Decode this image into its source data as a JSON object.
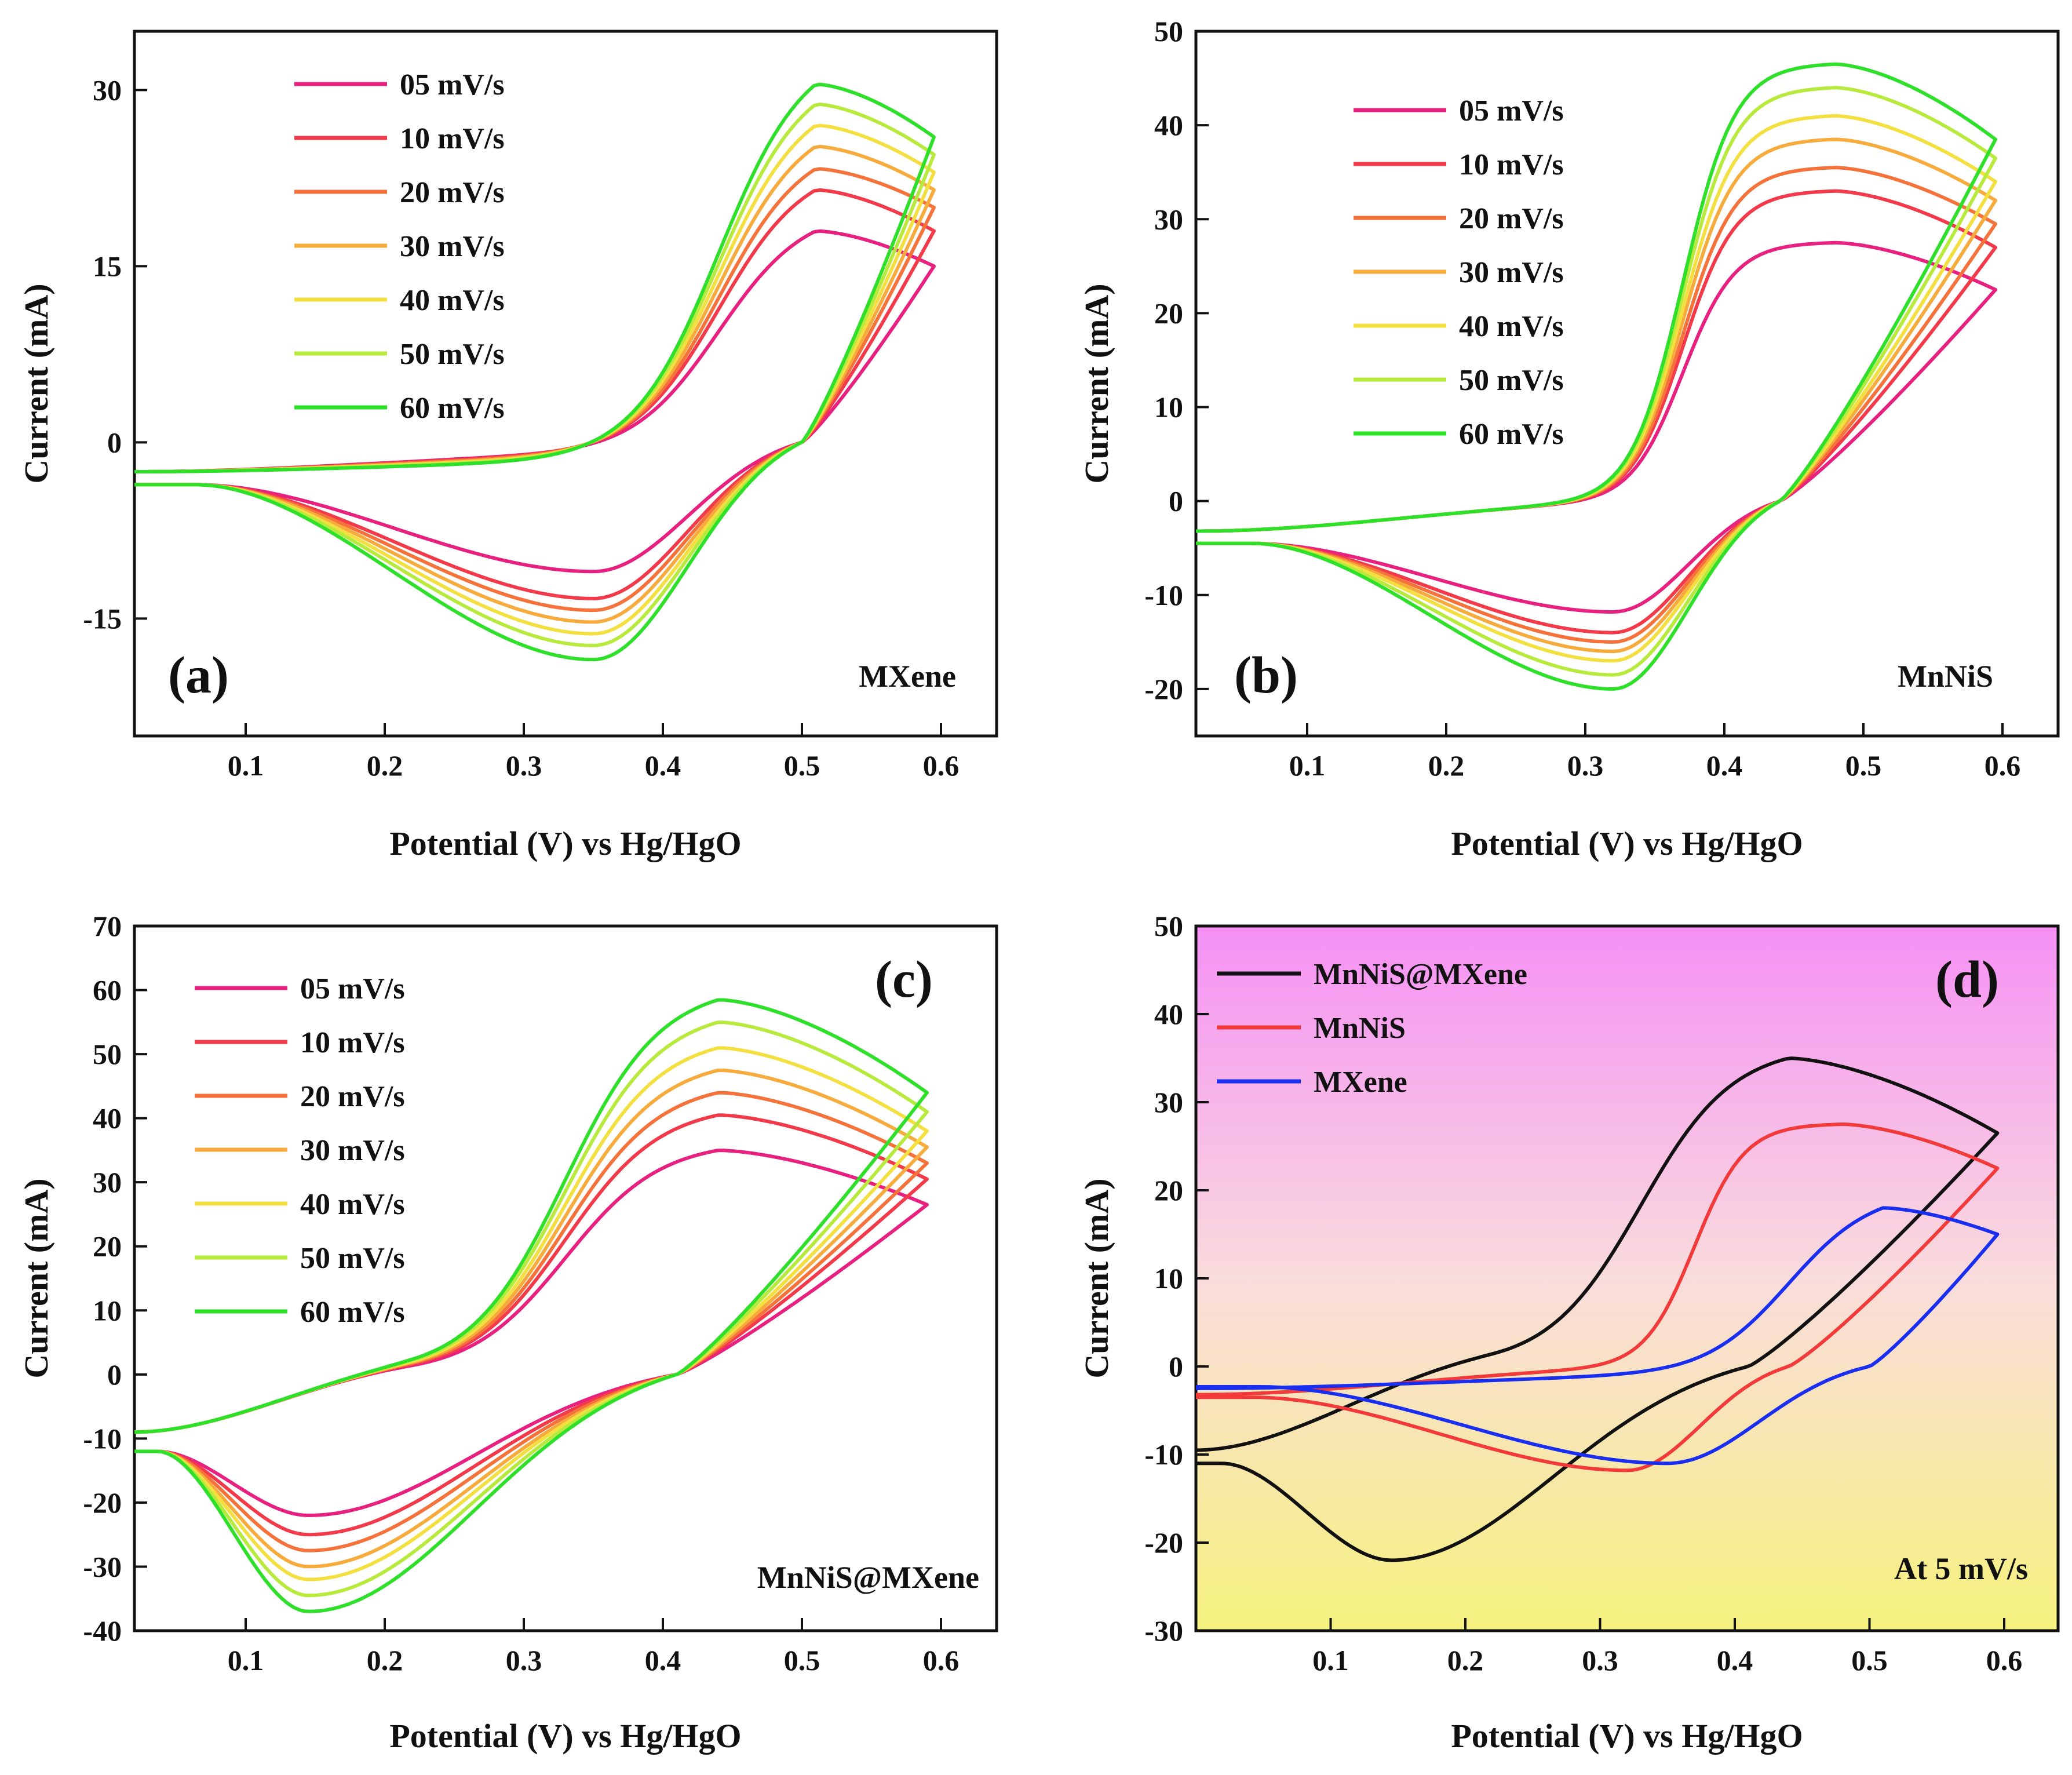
{
  "chart_data": [
    {
      "panel": "a",
      "type": "line",
      "subtype": "cyclic voltammetry",
      "label": "(a)",
      "sample": "MXene",
      "xlabel": "Potential (V) vs Hg/HgO",
      "ylabel": "Current (mA)",
      "xlim": [
        0.02,
        0.64
      ],
      "ylim": [
        -25,
        35
      ],
      "xticks": [
        0.1,
        0.2,
        0.3,
        0.4,
        0.5,
        0.6
      ],
      "xtick_labels": [
        "0.1",
        "0.2",
        "0.3",
        "0.4",
        "0.5",
        "0.6"
      ],
      "yticks": [
        -15,
        0,
        15,
        30
      ],
      "ytick_labels": [
        "-15",
        "0",
        "15",
        "30"
      ],
      "legend_position": "top-left",
      "curve_shape": {
        "ox_start": 0.34,
        "ox_mid": 0.44,
        "peak_x": 0.51,
        "vmax": 0.595,
        "baseline": 0.35,
        "start_upper": -2.5,
        "start_lower": -3.6,
        "red_peak_x": 0.35,
        "red_width": 0.07,
        "red_start_x": 0.1,
        "red_end_x": 0.49,
        "red_cross_x": 0.5
      },
      "series": [
        {
          "name": "05 mV/s",
          "color": "#e8207f",
          "anodic_peak": 18,
          "end_current": 15,
          "cathodic_peak": -11,
          "mid_current": -1.2
        },
        {
          "name": "10 mV/s",
          "color": "#f23a4a",
          "anodic_peak": 21.5,
          "end_current": 18,
          "cathodic_peak": -13.3,
          "mid_current": -1.3
        },
        {
          "name": "20 mV/s",
          "color": "#f5723a",
          "anodic_peak": 23.3,
          "end_current": 20,
          "cathodic_peak": -14.3,
          "mid_current": -1.4
        },
        {
          "name": "30 mV/s",
          "color": "#f7ab3c",
          "anodic_peak": 25.2,
          "end_current": 21.5,
          "cathodic_peak": -15.3,
          "mid_current": -1.5
        },
        {
          "name": "40 mV/s",
          "color": "#f3e040",
          "anodic_peak": 27,
          "end_current": 23,
          "cathodic_peak": -16.3,
          "mid_current": -1.6
        },
        {
          "name": "50 mV/s",
          "color": "#b7ea3c",
          "anodic_peak": 28.8,
          "end_current": 24.5,
          "cathodic_peak": -17.3,
          "mid_current": -1.7
        },
        {
          "name": "60 mV/s",
          "color": "#2ee02a",
          "anodic_peak": 30.5,
          "end_current": 26,
          "cathodic_peak": -18.5,
          "mid_current": -1.8
        }
      ]
    },
    {
      "panel": "b",
      "type": "line",
      "subtype": "cyclic voltammetry",
      "label": "(b)",
      "sample": "MnNiS",
      "xlabel": "Potential (V) vs Hg/HgO",
      "ylabel": "Current (mA)",
      "xlim": [
        0.02,
        0.64
      ],
      "ylim": [
        -25,
        50
      ],
      "xticks": [
        0.1,
        0.2,
        0.3,
        0.4,
        0.5,
        0.6
      ],
      "xtick_labels": [
        "0.1",
        "0.2",
        "0.3",
        "0.4",
        "0.5",
        "0.6"
      ],
      "yticks": [
        -20,
        -10,
        0,
        10,
        20,
        30,
        40,
        50
      ],
      "ytick_labels": [
        "-20",
        "-10",
        "0",
        "10",
        "20",
        "30",
        "40",
        "50"
      ],
      "legend_position": "top-left",
      "curve_shape": {
        "ox_start": 0.31,
        "ox_mid": 0.37,
        "peak_x": 0.48,
        "vmax": 0.595,
        "baseline": 0.32,
        "start_upper": -3.2,
        "start_lower": -4.5,
        "red_peak_x": 0.32,
        "red_width": 0.08,
        "red_start_x": 0.08,
        "red_end_x": 0.42,
        "red_cross_x": 0.44
      },
      "series": [
        {
          "name": "05 mV/s",
          "color": "#e8207f",
          "anodic_peak": 27.5,
          "end_current": 22.5,
          "cathodic_peak": -11.8,
          "mid_current": -0.4
        },
        {
          "name": "10 mV/s",
          "color": "#f23a4a",
          "anodic_peak": 33,
          "end_current": 27,
          "cathodic_peak": -14,
          "mid_current": -0.4
        },
        {
          "name": "20 mV/s",
          "color": "#f5723a",
          "anodic_peak": 35.5,
          "end_current": 29.5,
          "cathodic_peak": -15,
          "mid_current": -0.4
        },
        {
          "name": "30 mV/s",
          "color": "#f7ab3c",
          "anodic_peak": 38.5,
          "end_current": 32,
          "cathodic_peak": -16,
          "mid_current": -0.4
        },
        {
          "name": "40 mV/s",
          "color": "#f3e040",
          "anodic_peak": 41,
          "end_current": 34,
          "cathodic_peak": -17,
          "mid_current": -0.4
        },
        {
          "name": "50 mV/s",
          "color": "#b7ea3c",
          "anodic_peak": 44,
          "end_current": 36.5,
          "cathodic_peak": -18.5,
          "mid_current": -0.4
        },
        {
          "name": "60 mV/s",
          "color": "#2ee02a",
          "anodic_peak": 46.5,
          "end_current": 38.5,
          "cathodic_peak": -20,
          "mid_current": -0.4
        }
      ]
    },
    {
      "panel": "c",
      "type": "line",
      "subtype": "cyclic voltammetry",
      "label": "(c)",
      "sample": "MnNiS@MXene",
      "xlabel": "Potential (V) vs Hg/HgO",
      "ylabel": "Current (mA)",
      "xlim": [
        0.02,
        0.64
      ],
      "ylim": [
        -40,
        70
      ],
      "xticks": [
        0.1,
        0.2,
        0.3,
        0.4,
        0.5,
        0.6
      ],
      "xtick_labels": [
        "0.1",
        "0.2",
        "0.3",
        "0.4",
        "0.5",
        "0.6"
      ],
      "yticks": [
        -40,
        -30,
        -20,
        -10,
        0,
        10,
        20,
        30,
        40,
        50,
        60,
        70
      ],
      "ytick_labels": [
        "-40",
        "-30",
        "-20",
        "-10",
        "0",
        "10",
        "20",
        "30",
        "40",
        "50",
        "60",
        "70"
      ],
      "legend_position": "top-left",
      "curve_shape": {
        "ox_start": 0.22,
        "ox_mid": 0.33,
        "peak_x": 0.44,
        "vmax": 0.59,
        "baseline": 0.22,
        "start_upper": -9,
        "start_lower": -12,
        "red_peak_x": 0.145,
        "red_width": 0.04,
        "red_start_x": 0.05,
        "red_end_x": 0.38,
        "red_cross_x": 0.41
      },
      "series": [
        {
          "name": "05 mV/s",
          "color": "#e8207f",
          "anodic_peak": 35,
          "end_current": 26.5,
          "cathodic_peak": -22,
          "mid_current": 0
        },
        {
          "name": "10 mV/s",
          "color": "#f23a4a",
          "anodic_peak": 40.5,
          "end_current": 30.5,
          "cathodic_peak": -25,
          "mid_current": 0
        },
        {
          "name": "20 mV/s",
          "color": "#f5723a",
          "anodic_peak": 44,
          "end_current": 33,
          "cathodic_peak": -27.5,
          "mid_current": 0
        },
        {
          "name": "30 mV/s",
          "color": "#f7ab3c",
          "anodic_peak": 47.5,
          "end_current": 35.5,
          "cathodic_peak": -30,
          "mid_current": 0
        },
        {
          "name": "40 mV/s",
          "color": "#f3e040",
          "anodic_peak": 51,
          "end_current": 38,
          "cathodic_peak": -32,
          "mid_current": 0
        },
        {
          "name": "50 mV/s",
          "color": "#b7ea3c",
          "anodic_peak": 55,
          "end_current": 41,
          "cathodic_peak": -34.5,
          "mid_current": 0
        },
        {
          "name": "60 mV/s",
          "color": "#2ee02a",
          "anodic_peak": 58.5,
          "end_current": 44,
          "cathodic_peak": -37,
          "mid_current": 0
        }
      ]
    },
    {
      "panel": "d",
      "type": "line",
      "subtype": "cyclic voltammetry comparison",
      "label": "(d)",
      "sample": "At 5 mV/s",
      "xlabel": "Potential (V) vs Hg/HgO",
      "ylabel": "Current (mA)",
      "xlim": [
        0.0,
        0.64
      ],
      "ylim": [
        -30,
        50
      ],
      "xticks": [
        0.1,
        0.2,
        0.3,
        0.4,
        0.5,
        0.6
      ],
      "xtick_labels": [
        "0.1",
        "0.2",
        "0.3",
        "0.4",
        "0.5",
        "0.6"
      ],
      "yticks": [
        -30,
        -20,
        -10,
        0,
        10,
        20,
        30,
        40,
        50
      ],
      "ytick_labels": [
        "-30",
        "-20",
        "-10",
        "0",
        "10",
        "20",
        "30",
        "40",
        "50"
      ],
      "legend_position": "top-left",
      "background_gradient": [
        "#f590f5",
        "#f9dcdc",
        "#f5f27e"
      ],
      "series": [
        {
          "name": "MnNiS@MXene",
          "color": "#111111",
          "anodic_peak": 35,
          "end_current": 26.5,
          "cathodic_peak": -22,
          "mid_current": 0,
          "shape": {
            "ox_start": 0.22,
            "ox_mid": 0.33,
            "peak_x": 0.44,
            "vmax": 0.595,
            "baseline": 0.22,
            "start_upper": -9.5,
            "start_lower": -11,
            "red_peak_x": 0.145,
            "red_width": 0.04,
            "red_start_x": 0.05,
            "red_end_x": 0.38,
            "red_cross_x": 0.41
          }
        },
        {
          "name": "MnNiS",
          "color": "#f23a3a",
          "anodic_peak": 27.5,
          "end_current": 22.5,
          "cathodic_peak": -11.8,
          "mid_current": -0.4,
          "shape": {
            "ox_start": 0.31,
            "ox_mid": 0.37,
            "peak_x": 0.48,
            "vmax": 0.595,
            "baseline": 0.32,
            "start_upper": -3.2,
            "start_lower": -3.5,
            "red_peak_x": 0.32,
            "red_width": 0.08,
            "red_start_x": 0.08,
            "red_end_x": 0.42,
            "red_cross_x": 0.44
          }
        },
        {
          "name": "MXene",
          "color": "#1a2ef0",
          "anodic_peak": 18,
          "end_current": 15,
          "cathodic_peak": -11,
          "mid_current": -1.2,
          "shape": {
            "ox_start": 0.34,
            "ox_mid": 0.44,
            "peak_x": 0.51,
            "vmax": 0.595,
            "baseline": 0.35,
            "start_upper": -2.5,
            "start_lower": -2.3,
            "red_peak_x": 0.35,
            "red_width": 0.07,
            "red_start_x": 0.1,
            "red_end_x": 0.49,
            "red_cross_x": 0.5
          }
        }
      ]
    }
  ]
}
